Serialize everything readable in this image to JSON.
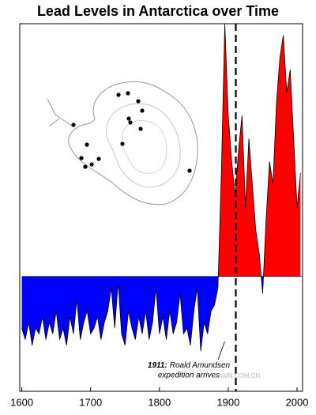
{
  "chart_data": {
    "type": "area",
    "title": "Lead Levels in Antarctica over Time",
    "x": [
      1600,
      1605,
      1610,
      1615,
      1620,
      1625,
      1630,
      1635,
      1640,
      1645,
      1650,
      1655,
      1660,
      1665,
      1670,
      1675,
      1680,
      1685,
      1690,
      1695,
      1700,
      1705,
      1710,
      1715,
      1720,
      1725,
      1730,
      1735,
      1740,
      1745,
      1750,
      1755,
      1760,
      1765,
      1770,
      1775,
      1780,
      1785,
      1790,
      1795,
      1800,
      1805,
      1810,
      1815,
      1820,
      1825,
      1830,
      1835,
      1840,
      1845,
      1850,
      1855,
      1860,
      1865,
      1870,
      1875,
      1880,
      1885,
      1890,
      1895,
      1900,
      1905,
      1910,
      1915,
      1920,
      1925,
      1930,
      1935,
      1940,
      1945,
      1950,
      1955,
      1960,
      1965,
      1970,
      1975,
      1980,
      1985,
      1990,
      1995,
      2000,
      2005
    ],
    "values": [
      -0.45,
      -0.55,
      -0.4,
      -0.6,
      -0.45,
      -0.5,
      -0.35,
      -0.55,
      -0.4,
      -0.5,
      -0.3,
      -0.55,
      -0.45,
      -0.6,
      -0.35,
      -0.5,
      -0.2,
      -0.55,
      -0.4,
      -0.3,
      -0.5,
      -0.45,
      -0.35,
      -0.55,
      -0.4,
      -0.3,
      -0.1,
      -0.45,
      -0.05,
      -0.5,
      -0.6,
      -0.3,
      -0.45,
      -0.55,
      -0.35,
      -0.5,
      -0.3,
      -0.55,
      -0.4,
      -0.1,
      -0.5,
      -0.35,
      -0.55,
      -0.3,
      -0.5,
      -0.4,
      -0.15,
      -0.5,
      -0.45,
      -0.6,
      -0.3,
      -0.1,
      -0.65,
      -0.4,
      -0.5,
      -0.3,
      -0.25,
      -0.1,
      0.9,
      2.2,
      1.4,
      1.0,
      0.7,
      1.1,
      1.4,
      0.6,
      1.2,
      0.8,
      0.4,
      0.2,
      -0.15,
      0.5,
      1.0,
      0.8,
      1.5,
      1.9,
      2.1,
      1.6,
      1.8,
      1.2,
      0.6,
      0.9
    ],
    "above_color": "#ff0000",
    "below_color": "#0000ff",
    "line_color": "#000000",
    "xlim": [
      1597,
      2008
    ],
    "xticks": [
      1600,
      1700,
      1800,
      1900,
      2000
    ],
    "ylim": [
      -1,
      2.2
    ],
    "annotations": [
      {
        "x": 1911,
        "label": "1911:",
        "text": "Roald Amundsen",
        "text2": "expedition arrives"
      }
    ],
    "watermark": "CNMN.COM.CN"
  }
}
